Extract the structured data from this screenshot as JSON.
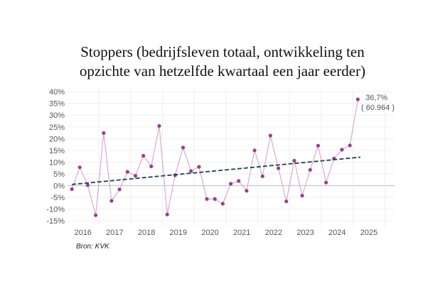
{
  "chart_data": {
    "type": "line",
    "title": "Stoppers (bedrijfsleven totaal, ontwikkeling ten opzichte van hetzelfde kwartaal een jaar eerder)",
    "title_lines": [
      "Stoppers (bedrijfsleven totaal, ontwikkeling ten",
      "opzichte van hetzelfde kwartaal een jaar eerder)"
    ],
    "xlabel": "",
    "ylabel": "",
    "x_tick_labels": [
      "2016",
      "2017",
      "2018",
      "2019",
      "2020",
      "2021",
      "2022",
      "2023",
      "2024",
      "2025"
    ],
    "x_tick_values": [
      2016,
      2017,
      2018,
      2019,
      2020,
      2021,
      2022,
      2023,
      2024,
      2025
    ],
    "y_tick_labels": [
      "40%",
      "35%",
      "30%",
      "25%",
      "20%",
      "15%",
      "10%",
      "5%",
      "0%",
      "-5%",
      "-10%",
      "-15%"
    ],
    "y_tick_values": [
      40,
      35,
      30,
      25,
      20,
      15,
      10,
      5,
      0,
      -5,
      -10,
      -15
    ],
    "xlim": [
      2015.6,
      2025.8
    ],
    "ylim": [
      -15,
      40
    ],
    "grid": true,
    "series": [
      {
        "name": "Stoppers",
        "color": "#d6acd0",
        "marker_color": "#9a3f8c",
        "x_start": 2015.65,
        "x_step": 0.25,
        "values": [
          -1.5,
          7.8,
          0.2,
          -12.6,
          22.4,
          -6.5,
          -1.6,
          5.9,
          4.2,
          12.7,
          8.2,
          25.4,
          -12.3,
          4.4,
          16.2,
          6.2,
          8.0,
          -5.7,
          -5.7,
          -7.7,
          0.8,
          2.0,
          -2.2,
          15.0,
          4.0,
          21.3,
          7.4,
          -6.7,
          10.6,
          -4.3,
          6.7,
          17.0,
          1.3,
          11.5,
          15.3,
          17.1,
          36.7
        ]
      }
    ],
    "trendline": {
      "name": "trend",
      "color": "#1e4056",
      "style": "dashed",
      "x": [
        2015.65,
        2024.73
      ],
      "y": [
        0.5,
        12.1
      ]
    },
    "annotation": {
      "value_label": "36,7%",
      "count_label": "( 60.964 )"
    },
    "source": "Bron: KVK"
  }
}
